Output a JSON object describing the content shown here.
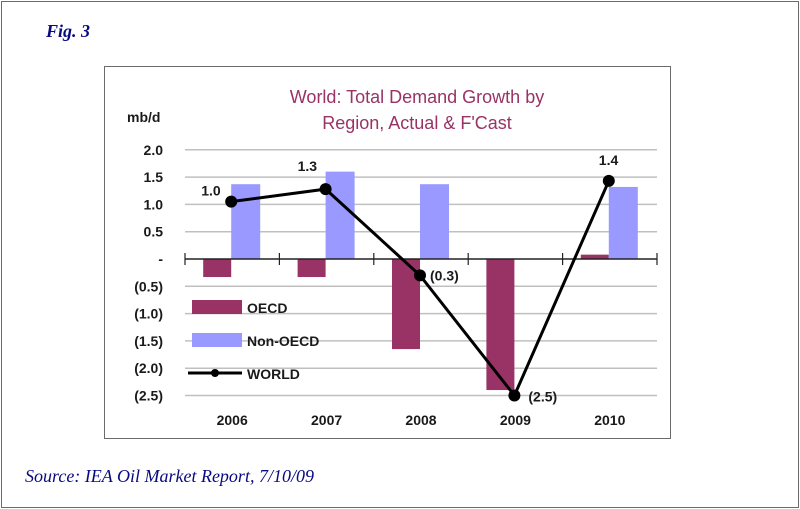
{
  "figure": {
    "label": "Fig. 3",
    "source": "Source:  IEA Oil Market Report, 7/10/09"
  },
  "colors": {
    "oecd": "#993366",
    "non_oecd": "#9999ff",
    "world": "#000000",
    "title": "#993366",
    "grid": "#c0c0c0"
  },
  "chart_data": {
    "type": "bar",
    "title_lines": [
      "World: Total Demand Growth by",
      "Region, Actual & F'Cast"
    ],
    "title": "World: Total Demand Growth by Region, Actual & F'Cast",
    "xlabel": "",
    "ylabel": "mb/d",
    "ylim": [
      -2.5,
      2.0
    ],
    "yticks": [
      2.0,
      1.5,
      1.0,
      0.5,
      0,
      -0.5,
      -1.0,
      -1.5,
      -2.0,
      -2.5
    ],
    "ytick_labels": [
      "2.0",
      "1.5",
      "1.0",
      "0.5",
      "-",
      "(0.5)",
      "(1.0)",
      "(1.5)",
      "(2.0)",
      "(2.5)"
    ],
    "grid": true,
    "categories": [
      "2006",
      "2007",
      "2008",
      "2009",
      "2010"
    ],
    "series": [
      {
        "name": "OECD",
        "type": "bar",
        "values": [
          -0.33,
          -0.33,
          -1.65,
          -2.4,
          0.08
        ]
      },
      {
        "name": "Non-OECD",
        "type": "bar",
        "values": [
          1.37,
          1.6,
          1.37,
          0.0,
          1.32
        ]
      },
      {
        "name": "WORLD",
        "type": "line",
        "values": [
          1.05,
          1.28,
          -0.3,
          -2.5,
          1.43
        ],
        "data_labels": [
          "1.0",
          "1.3",
          "(0.3)",
          "(2.5)",
          "1.4"
        ]
      }
    ],
    "legend": {
      "placement": "lower-left",
      "entries": [
        "OECD",
        "Non-OECD",
        "WORLD"
      ]
    }
  }
}
